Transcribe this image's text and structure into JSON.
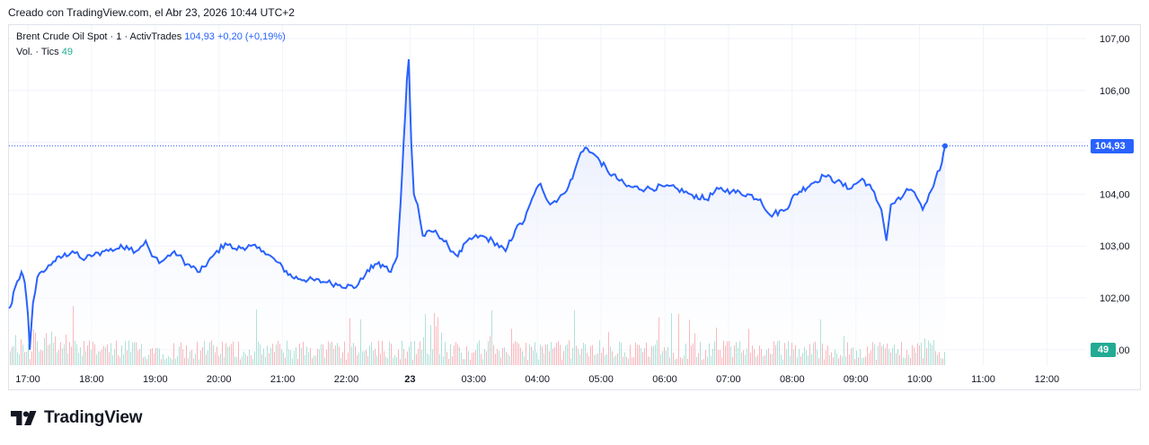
{
  "caption": "Creado con TradingView.com, el Abr 23, 2026 10:44 UTC+2",
  "legend": {
    "symbol": "Brent Crude Oil Spot · 1 · ActivTrades",
    "last": "104,93",
    "change": "+0,20 (+0,19%)",
    "vol_label": "Vol. · Tics",
    "vol_value": "49"
  },
  "price_badge": "104,93",
  "vol_badge": "49",
  "brand": "TradingView",
  "colors": {
    "line": "#2962ff",
    "area_top": "#dbe3fb",
    "volume_up": "#22ab94",
    "volume_down": "#f23645",
    "grid": "#f0f3fa"
  },
  "chart_data": {
    "type": "area",
    "title": "Brent Crude Oil Spot · 1 · ActivTrades",
    "xlabel": "",
    "ylabel": "",
    "y_ticks": [
      "107,00",
      "106,00",
      "105,00",
      "104,00",
      "103,00",
      "102,00",
      "101,00"
    ],
    "x_ticks": [
      "17:00",
      "18:00",
      "19:00",
      "20:00",
      "21:00",
      "22:00",
      "23",
      "03:00",
      "04:00",
      "05:00",
      "06:00",
      "07:00",
      "08:00",
      "09:00",
      "10:00",
      "11:00",
      "12:00"
    ],
    "ylim": [
      100.7,
      107.2
    ],
    "grid": true,
    "series": [
      {
        "values": [
          [
            0,
            101.8
          ],
          [
            0.05,
            101.9
          ],
          [
            0.1,
            102.2
          ],
          [
            0.2,
            102.5
          ],
          [
            0.25,
            102.3
          ],
          [
            0.3,
            101.7
          ],
          [
            0.33,
            101.0
          ],
          [
            0.38,
            101.9
          ],
          [
            0.45,
            102.4
          ],
          [
            0.55,
            102.5
          ],
          [
            0.7,
            102.7
          ],
          [
            0.85,
            102.8
          ],
          [
            1.0,
            102.9
          ],
          [
            1.15,
            102.75
          ],
          [
            1.3,
            102.8
          ],
          [
            1.5,
            102.9
          ],
          [
            1.7,
            102.95
          ],
          [
            1.85,
            103.0
          ],
          [
            2.0,
            102.9
          ],
          [
            2.15,
            103.1
          ],
          [
            2.25,
            102.8
          ],
          [
            2.4,
            102.7
          ],
          [
            2.6,
            102.9
          ],
          [
            2.8,
            102.65
          ],
          [
            3.0,
            102.5
          ],
          [
            3.2,
            102.8
          ],
          [
            3.4,
            103.05
          ],
          [
            3.55,
            102.95
          ],
          [
            3.8,
            103.0
          ],
          [
            4.0,
            102.9
          ],
          [
            4.2,
            102.7
          ],
          [
            4.45,
            102.4
          ],
          [
            4.7,
            102.35
          ],
          [
            5.0,
            102.3
          ],
          [
            5.2,
            102.25
          ],
          [
            5.45,
            102.2
          ],
          [
            5.6,
            102.45
          ],
          [
            5.75,
            102.65
          ],
          [
            5.9,
            102.6
          ],
          [
            6.0,
            102.5
          ],
          [
            6.1,
            102.8
          ],
          [
            6.15,
            103.8
          ],
          [
            6.2,
            105.0
          ],
          [
            6.25,
            106.2
          ],
          [
            6.28,
            106.6
          ],
          [
            6.32,
            105.0
          ],
          [
            6.36,
            104.0
          ],
          [
            6.42,
            103.8
          ],
          [
            6.5,
            103.2
          ],
          [
            6.7,
            103.3
          ],
          [
            6.9,
            103.0
          ],
          [
            7.05,
            102.8
          ],
          [
            7.2,
            103.1
          ],
          [
            7.4,
            103.2
          ],
          [
            7.6,
            103.1
          ],
          [
            7.8,
            102.9
          ],
          [
            7.95,
            103.3
          ],
          [
            8.1,
            103.5
          ],
          [
            8.25,
            104.0
          ],
          [
            8.35,
            104.2
          ],
          [
            8.5,
            103.8
          ],
          [
            8.7,
            104.0
          ],
          [
            8.85,
            104.3
          ],
          [
            8.95,
            104.7
          ],
          [
            9.05,
            104.9
          ],
          [
            9.15,
            104.8
          ],
          [
            9.25,
            104.7
          ],
          [
            9.4,
            104.45
          ],
          [
            9.55,
            104.3
          ],
          [
            9.7,
            104.15
          ],
          [
            10.0,
            104.1
          ],
          [
            10.3,
            104.15
          ],
          [
            10.5,
            104.1
          ],
          [
            10.7,
            104.0
          ],
          [
            10.95,
            103.9
          ],
          [
            11.15,
            104.1
          ],
          [
            11.35,
            104.05
          ],
          [
            11.6,
            104.0
          ],
          [
            11.8,
            103.9
          ],
          [
            11.95,
            103.6
          ],
          [
            12.2,
            103.7
          ],
          [
            12.35,
            104.0
          ],
          [
            12.6,
            104.2
          ],
          [
            12.8,
            104.35
          ],
          [
            13.0,
            104.25
          ],
          [
            13.2,
            104.1
          ],
          [
            13.4,
            104.3
          ],
          [
            13.55,
            104.1
          ],
          [
            13.7,
            103.7
          ],
          [
            13.78,
            103.1
          ],
          [
            13.85,
            103.8
          ],
          [
            14.0,
            103.9
          ],
          [
            14.1,
            104.1
          ],
          [
            14.25,
            103.95
          ],
          [
            14.35,
            103.7
          ],
          [
            14.45,
            104.0
          ],
          [
            14.55,
            104.3
          ],
          [
            14.65,
            104.6
          ],
          [
            14.7,
            104.93
          ]
        ]
      }
    ],
    "volume": {
      "name": "Vol. · Tics",
      "last": 49
    }
  }
}
